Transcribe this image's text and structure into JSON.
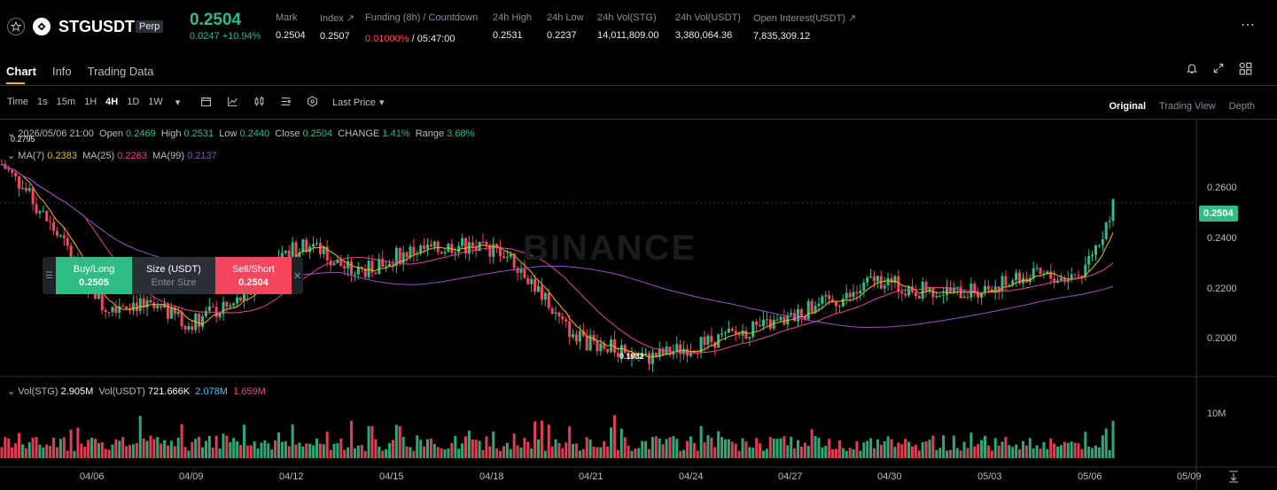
{
  "ticker": {
    "symbol": "STGUSDT",
    "badge": "Perp",
    "last_price": "0.2504",
    "change": "0.0247 +10.94%",
    "stats": [
      {
        "label": "Mark",
        "value": "0.2504"
      },
      {
        "label": "Index ↗",
        "value": "0.2507"
      },
      {
        "label": "Funding (8h) / Countdown",
        "value_red": "0.01000%",
        "value": " / 05:47:00"
      },
      {
        "label": "24h High",
        "value": "0.2531"
      },
      {
        "label": "24h Low",
        "value": "0.2237"
      },
      {
        "label": "24h Vol(STG)",
        "value": "14,011,809.00"
      },
      {
        "label": "24h Vol(USDT)",
        "value": "3,380,064.36"
      },
      {
        "label": "Open Interest(USDT) ↗",
        "value": "7,835,309.12"
      }
    ],
    "more": "⋯"
  },
  "tabs": [
    "Chart",
    "Info",
    "Trading Data"
  ],
  "toolbar": {
    "intervals": [
      "Time",
      "1s",
      "15m",
      "1H",
      "4H",
      "1D",
      "1W"
    ],
    "active_interval": "4H",
    "price_type": "Last Price",
    "views": [
      "Original",
      "Trading View",
      "Depth"
    ],
    "active_view": "Original"
  },
  "legend": {
    "date": "2026/05/06 21:00",
    "open_label": "Open",
    "open": "0.2469",
    "high_label": "High",
    "high": "0.2531",
    "low_label": "Low",
    "low": "0.2440",
    "close_label": "Close",
    "close": "0.2504",
    "change_label": "CHANGE",
    "change": "1.41%",
    "range_label": "Range",
    "range": "3.68%",
    "ma7_label": "MA(7)",
    "ma7": "0.2383",
    "ma25_label": "MA(25)",
    "ma25": "0.2263",
    "ma99_label": "MA(99)",
    "ma99": "0.2137",
    "vol_label": "Vol(STG)",
    "vol": "2.905M",
    "volusdt_label": "Vol(USDT)",
    "volusdt": "721.666K",
    "vol_ma1": "2.078M",
    "vol_ma2": "1.659M"
  },
  "trade_panel": {
    "buy_label": "Buy/Long",
    "buy_price": "0.2505",
    "size_label": "Size (USDT)",
    "size_placeholder": "Enter Size",
    "sell_label": "Sell/Short",
    "sell_price": "0.2504"
  },
  "watermark": "BINANCE",
  "colors": {
    "up": "#2ebd85",
    "down": "#f6465d",
    "ma7": "#f0b90b",
    "ma25": "#e84393",
    "ma99": "#9c4dcc"
  },
  "chart_data": {
    "type": "candlestick",
    "y_ticks": [
      "0.2600",
      "0.2400",
      "0.2200",
      "0.2000"
    ],
    "ylim": [
      0.1898,
      0.2795
    ],
    "top_label": "0.2795",
    "current_price_tag": "0.2504",
    "low_annotation": "0.1932",
    "x_ticks": [
      "04/06",
      "04/09",
      "04/12",
      "04/15",
      "04/18",
      "04/21",
      "04/24",
      "04/27",
      "04/30",
      "05/03",
      "05/06",
      "05/09"
    ],
    "volume_tick": "10M",
    "price_path": [
      [
        0,
        0.264
      ],
      [
        6,
        0.256
      ],
      [
        12,
        0.246
      ],
      [
        18,
        0.236
      ],
      [
        24,
        0.224
      ],
      [
        30,
        0.214
      ],
      [
        36,
        0.216
      ],
      [
        42,
        0.214
      ],
      [
        48,
        0.212
      ],
      [
        54,
        0.208
      ],
      [
        60,
        0.212
      ],
      [
        66,
        0.214
      ],
      [
        72,
        0.22
      ],
      [
        78,
        0.226
      ],
      [
        84,
        0.234
      ],
      [
        90,
        0.236
      ],
      [
        96,
        0.23
      ],
      [
        102,
        0.226
      ],
      [
        108,
        0.228
      ],
      [
        114,
        0.232
      ],
      [
        120,
        0.234
      ],
      [
        126,
        0.234
      ],
      [
        132,
        0.236
      ],
      [
        138,
        0.234
      ],
      [
        144,
        0.234
      ],
      [
        150,
        0.228
      ],
      [
        156,
        0.218
      ],
      [
        162,
        0.208
      ],
      [
        168,
        0.202
      ],
      [
        174,
        0.201
      ],
      [
        180,
        0.198
      ],
      [
        186,
        0.196
      ],
      [
        192,
        0.198
      ],
      [
        198,
        0.2
      ],
      [
        204,
        0.202
      ],
      [
        210,
        0.204
      ],
      [
        216,
        0.206
      ],
      [
        222,
        0.208
      ],
      [
        228,
        0.21
      ],
      [
        234,
        0.214
      ],
      [
        240,
        0.216
      ],
      [
        246,
        0.218
      ],
      [
        252,
        0.224
      ],
      [
        258,
        0.222
      ],
      [
        264,
        0.22
      ],
      [
        270,
        0.22
      ],
      [
        276,
        0.219
      ],
      [
        282,
        0.22
      ],
      [
        288,
        0.222
      ],
      [
        294,
        0.224
      ],
      [
        300,
        0.225
      ],
      [
        306,
        0.224
      ],
      [
        312,
        0.226
      ],
      [
        318,
        0.24
      ],
      [
        321,
        0.2504
      ]
    ]
  }
}
